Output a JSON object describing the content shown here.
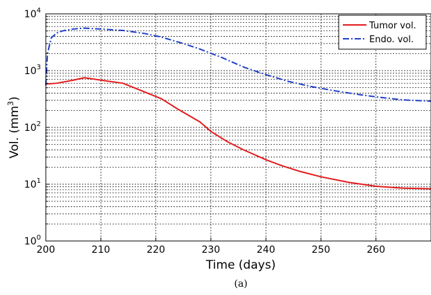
{
  "chart_data": {
    "type": "line",
    "xlabel": "Time (days)",
    "ylabel_main": "Vol. (mm",
    "ylabel_sup": "3",
    "ylabel_end": ")",
    "caption": "(a)",
    "xlim": [
      200,
      270
    ],
    "ylim": [
      1,
      10000
    ],
    "yscale": "log",
    "grid": "major and minor, dotted",
    "legend_position": "top-right",
    "x_ticks": [
      200,
      210,
      220,
      230,
      240,
      250,
      260
    ],
    "y_ticks": [
      {
        "base": "10",
        "exp": "0",
        "value": 1
      },
      {
        "base": "10",
        "exp": "1",
        "value": 10
      },
      {
        "base": "10",
        "exp": "2",
        "value": 100
      },
      {
        "base": "10",
        "exp": "3",
        "value": 1000
      },
      {
        "base": "10",
        "exp": "4",
        "value": 10000
      }
    ],
    "series": [
      {
        "name": "Tumor vol.",
        "color": "#e41a1c",
        "style": "solid",
        "points": [
          [
            200,
            580
          ],
          [
            202,
            600
          ],
          [
            205,
            680
          ],
          [
            207,
            750
          ],
          [
            210,
            680
          ],
          [
            214,
            600
          ],
          [
            218,
            420
          ],
          [
            221,
            320
          ],
          [
            224,
            210
          ],
          [
            228,
            125
          ],
          [
            230,
            85
          ],
          [
            233,
            56
          ],
          [
            236,
            40
          ],
          [
            240,
            27
          ],
          [
            243,
            21
          ],
          [
            246,
            17
          ],
          [
            250,
            13.5
          ],
          [
            255,
            10.8
          ],
          [
            260,
            9.2
          ],
          [
            265,
            8.5
          ],
          [
            270,
            8.3
          ]
        ]
      },
      {
        "name": "Endo. vol.",
        "color": "#1f3fc8",
        "style": "dashdot",
        "points": [
          [
            200,
            550
          ],
          [
            200.3,
            2000
          ],
          [
            201,
            3800
          ],
          [
            202,
            4600
          ],
          [
            203,
            5000
          ],
          [
            205,
            5400
          ],
          [
            207,
            5600
          ],
          [
            210,
            5400
          ],
          [
            214,
            5100
          ],
          [
            218,
            4500
          ],
          [
            221,
            3900
          ],
          [
            225,
            3000
          ],
          [
            228,
            2400
          ],
          [
            232,
            1700
          ],
          [
            236,
            1150
          ],
          [
            240,
            850
          ],
          [
            244,
            650
          ],
          [
            248,
            530
          ],
          [
            252,
            450
          ],
          [
            256,
            390
          ],
          [
            260,
            345
          ],
          [
            265,
            305
          ],
          [
            270,
            290
          ]
        ]
      }
    ]
  }
}
